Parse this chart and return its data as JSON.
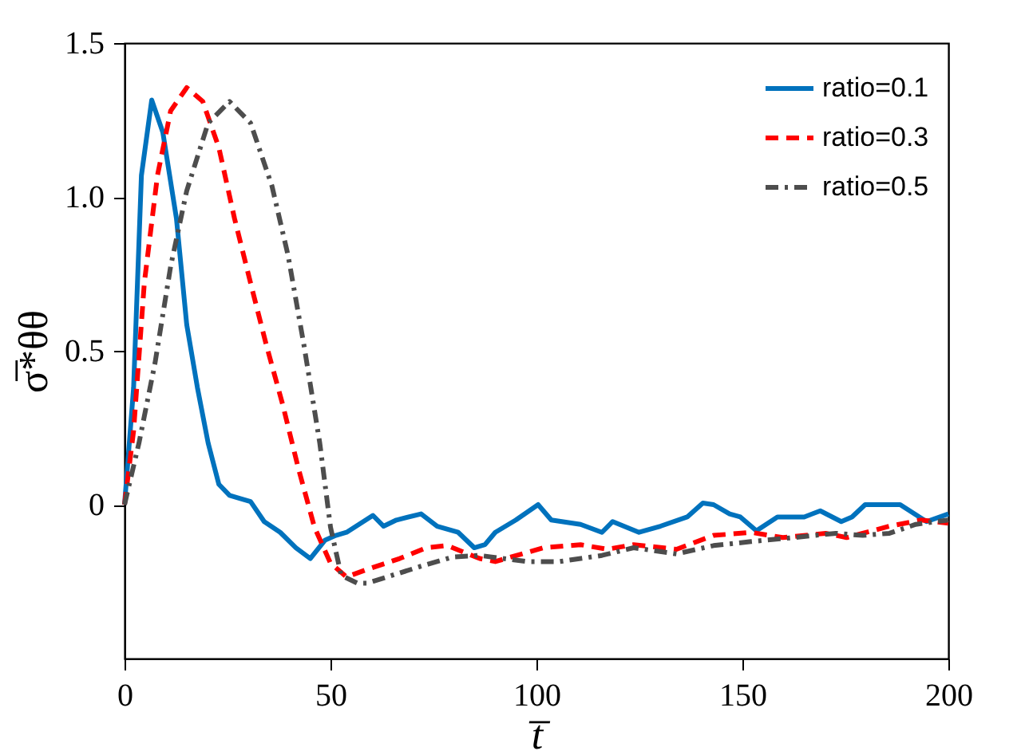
{
  "chart_data": {
    "type": "line",
    "xlabel": "t̅",
    "ylabel": "σ̅*θθ",
    "xlim": [
      0,
      200
    ],
    "xticks": [
      0,
      50,
      100,
      150,
      200
    ],
    "ylim": [
      -0.5,
      1.5
    ],
    "yticks": [
      0,
      0.5,
      {
        "value": 1,
        "label": "1.0"
      },
      1.5
    ],
    "grid": false,
    "legend": "top right",
    "marker": "none",
    "series": [
      {
        "name": "ratio=0.1",
        "color": "#0072bd",
        "line_style": "solid",
        "x": [
          0,
          2.2,
          4.1,
          6.6,
          9.3,
          12.6,
          15.1,
          17.7,
          20.3,
          22.9,
          25.5,
          28.1,
          30.6,
          33.9,
          37.8,
          41.6,
          45.1,
          48.7,
          51.3,
          53.9,
          60.3,
          62.9,
          66,
          72,
          75.9,
          81,
          84.9,
          87.5,
          90,
          95,
          100.4,
          103.6,
          110.7,
          115.9,
          118.5,
          124.9,
          130.1,
          136.6,
          140.4,
          143,
          146.9,
          149.5,
          153.4,
          158.5,
          165,
          168.9,
          174,
          176.6,
          179.8,
          188.3,
          194.7,
          200
        ],
        "values": [
          0,
          0.38,
          1.07,
          1.315,
          1.21,
          0.93,
          0.585,
          0.38,
          0.2,
          0.066,
          0.03,
          0.02,
          0.01,
          -0.055,
          -0.09,
          -0.14,
          -0.175,
          -0.115,
          -0.1,
          -0.09,
          -0.035,
          -0.07,
          -0.05,
          -0.03,
          -0.07,
          -0.09,
          -0.14,
          -0.13,
          -0.09,
          -0.05,
          0.0,
          -0.05,
          -0.064,
          -0.09,
          -0.055,
          -0.09,
          -0.07,
          -0.04,
          0.005,
          0.0,
          -0.03,
          -0.04,
          -0.085,
          -0.04,
          -0.04,
          -0.02,
          -0.055,
          -0.04,
          0.0,
          0.0,
          -0.055,
          -0.03
        ]
      },
      {
        "name": "ratio=0.3",
        "color": "#ff0000",
        "line_style": "dashed",
        "x": [
          0,
          2.2,
          4.8,
          8,
          11.2,
          15.1,
          19,
          22.9,
          26.7,
          30.6,
          34.5,
          38.4,
          42.2,
          46.1,
          50,
          53.9,
          59,
          66.8,
          73.3,
          78.4,
          86.2,
          90,
          101.7,
          110.7,
          117.2,
          123.6,
          134,
          143,
          152.1,
          159.8,
          170.2,
          175.3,
          185.7,
          193.4,
          200
        ],
        "values": [
          0,
          0.24,
          0.72,
          1.07,
          1.28,
          1.355,
          1.31,
          1.16,
          0.93,
          0.72,
          0.515,
          0.325,
          0.118,
          -0.073,
          -0.19,
          -0.235,
          -0.21,
          -0.175,
          -0.14,
          -0.133,
          -0.175,
          -0.185,
          -0.14,
          -0.13,
          -0.145,
          -0.13,
          -0.145,
          -0.1,
          -0.09,
          -0.107,
          -0.093,
          -0.107,
          -0.07,
          -0.05,
          -0.06
        ]
      },
      {
        "name": "ratio=0.5",
        "color": "#4d4d4d",
        "line_style": "dashdot",
        "x": [
          0,
          3.5,
          7.4,
          11.2,
          15.1,
          20.3,
          25.5,
          30.6,
          35.8,
          39.7,
          43.6,
          47.4,
          50,
          52.6,
          56.5,
          59,
          72,
          79.7,
          86.2,
          97.8,
          105.6,
          115.9,
          123.6,
          134,
          143,
          152.1,
          162.4,
          172.7,
          179.2,
          185.7,
          192.1,
          200
        ],
        "values": [
          0,
          0.2,
          0.46,
          0.775,
          1.02,
          1.24,
          1.31,
          1.24,
          1.035,
          0.81,
          0.515,
          0.2,
          -0.073,
          -0.23,
          -0.255,
          -0.255,
          -0.2,
          -0.17,
          -0.165,
          -0.185,
          -0.185,
          -0.165,
          -0.14,
          -0.16,
          -0.133,
          -0.12,
          -0.107,
          -0.093,
          -0.1,
          -0.093,
          -0.064,
          -0.05
        ]
      }
    ]
  }
}
